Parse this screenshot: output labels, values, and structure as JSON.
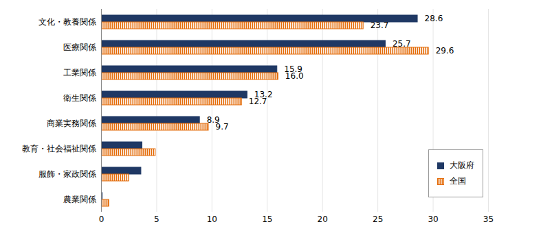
{
  "chart_data": {
    "type": "bar",
    "orientation": "horizontal",
    "categories": [
      "文化・教養関係",
      "医療関係",
      "工業関係",
      "衛生関係",
      "商業実務関係",
      "教育・社会福祉関係",
      "服飾・家政関係",
      "農業関係"
    ],
    "series": [
      {
        "name": "大阪府",
        "color": "#1f3864",
        "values": [
          28.6,
          25.7,
          15.9,
          13.2,
          8.9,
          3.7,
          3.6,
          0.1
        ],
        "value_labels": [
          "28.6",
          "25.7",
          "15.9",
          "13.2",
          "8.9",
          null,
          null,
          null
        ]
      },
      {
        "name": "全国",
        "color": "#e46c0a",
        "values": [
          23.7,
          29.6,
          16.0,
          12.7,
          9.7,
          4.9,
          2.5,
          0.7
        ],
        "value_labels": [
          "23.7",
          "29.6",
          "16.0",
          "12.7",
          "9.7",
          null,
          null,
          null
        ]
      }
    ],
    "xlim": [
      0,
      35
    ],
    "xticks": [
      0,
      5,
      10,
      15,
      20,
      25,
      30,
      35
    ],
    "grid": true,
    "legend": "lower right",
    "data_labels": true
  }
}
